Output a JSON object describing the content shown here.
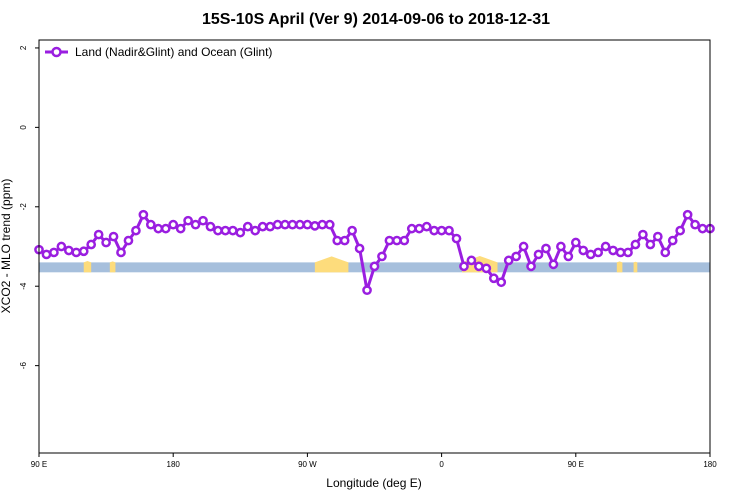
{
  "chart_data": {
    "type": "line",
    "title": "15S-10S April (Ver 9)   2014-09-06 to 2018-12-31",
    "xlabel": "Longitude (deg E)",
    "ylabel": "XCO2 - MLO trend (ppm)",
    "xlim": [
      90,
      450
    ],
    "ylim": [
      -8.2,
      2.2
    ],
    "x_ticks": [
      {
        "value": 90,
        "label": "90 E"
      },
      {
        "value": 162,
        "label": "180"
      },
      {
        "value": 234,
        "label": "90 W"
      },
      {
        "value": 306,
        "label": "0"
      },
      {
        "value": 378,
        "label": "90 E"
      },
      {
        "value": 450,
        "label": "180"
      }
    ],
    "y_ticks": [
      {
        "value": 2,
        "label": "2"
      },
      {
        "value": 0,
        "label": "0"
      },
      {
        "value": -2,
        "label": "-2"
      },
      {
        "value": -4,
        "label": "-4"
      },
      {
        "value": -6,
        "label": "-6"
      }
    ],
    "grid": false,
    "legend_position": "top-left",
    "series": [
      {
        "name": "Land (Nadir&Glint) and Ocean (Glint)",
        "color": "#9a1ee0",
        "x": [
          90,
          94,
          98,
          102,
          106,
          110,
          114,
          118,
          122,
          126,
          130,
          134,
          138,
          142,
          146,
          150,
          154,
          158,
          162,
          166,
          170,
          174,
          178,
          182,
          186,
          190,
          194,
          198,
          202,
          206,
          210,
          214,
          218,
          222,
          226,
          230,
          234,
          238,
          242,
          246,
          250,
          254,
          258,
          262,
          266,
          270,
          274,
          278,
          282,
          286,
          290,
          294,
          298,
          302,
          306,
          310,
          314,
          318,
          322,
          326,
          330,
          334,
          338,
          342,
          346,
          350,
          354,
          358,
          362,
          366,
          370,
          374,
          378,
          382,
          386,
          390,
          394,
          398,
          402,
          406,
          410,
          414,
          418,
          422,
          426,
          430,
          434,
          438,
          442,
          446,
          450
        ],
        "y": [
          -3.08,
          -3.2,
          -3.15,
          -3.0,
          -3.1,
          -3.15,
          -3.12,
          -2.95,
          -2.7,
          -2.9,
          -2.75,
          -3.15,
          -2.85,
          -2.6,
          -2.2,
          -2.45,
          -2.55,
          -2.55,
          -2.45,
          -2.55,
          -2.35,
          -2.45,
          -2.35,
          -2.5,
          -2.6,
          -2.6,
          -2.6,
          -2.65,
          -2.5,
          -2.6,
          -2.5,
          -2.5,
          -2.45,
          -2.45,
          -2.45,
          -2.45,
          -2.45,
          -2.48,
          -2.45,
          -2.45,
          -2.85,
          -2.85,
          -2.6,
          -3.05,
          -4.1,
          -3.5,
          -3.25,
          -2.85,
          -2.85,
          -2.85,
          -2.55,
          -2.55,
          -2.5,
          -2.6,
          -2.6,
          -2.6,
          -2.8,
          -3.5,
          -3.35,
          -3.5,
          -3.55,
          -3.8,
          -3.9,
          -3.35,
          -3.25,
          -3.0,
          -3.5,
          -3.2,
          -3.05,
          -3.45,
          -3.0,
          -3.25,
          -2.9,
          -3.1,
          -3.2,
          -3.15,
          -3.0,
          -3.1,
          -3.15,
          -3.15,
          -2.95,
          -2.7,
          -2.95,
          -2.75,
          -3.15,
          -2.85,
          -2.6,
          -2.2,
          -2.45,
          -2.55,
          -2.55
        ]
      }
    ],
    "surface_band": {
      "y_range": [
        -3.65,
        -3.4
      ],
      "ocean_color": "#a6bfdc",
      "land_color": "#fddc7c",
      "land_spans": [
        [
          114,
          118
        ],
        [
          128,
          131
        ],
        [
          238,
          256
        ],
        [
          317,
          336
        ],
        [
          400,
          403
        ],
        [
          409,
          411
        ]
      ]
    }
  }
}
